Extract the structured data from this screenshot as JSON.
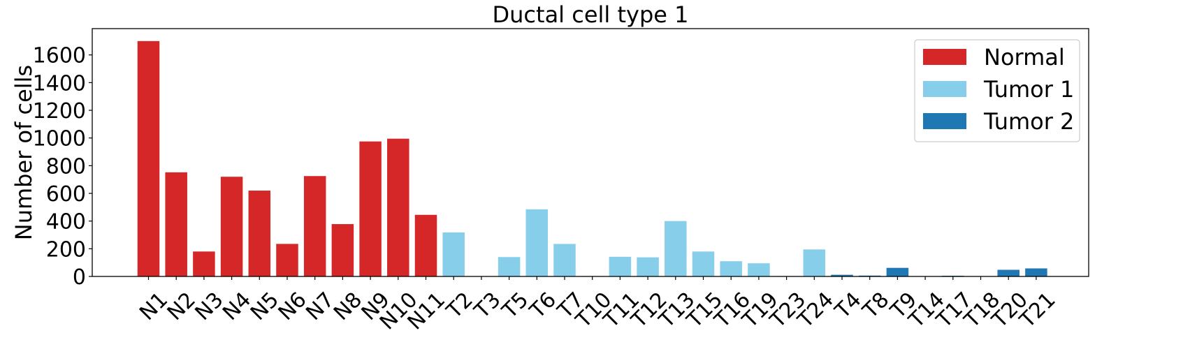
{
  "chart_data": {
    "type": "bar",
    "title": "Ductal cell type 1",
    "xlabel": "",
    "ylabel": "Number of cells",
    "ylim": [
      0,
      1790
    ],
    "yticks": [
      0,
      200,
      400,
      600,
      800,
      1000,
      1200,
      1400,
      1600
    ],
    "grid": false,
    "legend_position": "top-right",
    "categories": [
      "N1",
      "N2",
      "N3",
      "N4",
      "N5",
      "N6",
      "N7",
      "N8",
      "N9",
      "N10",
      "N11",
      "T2",
      "T3",
      "T5",
      "T6",
      "T7",
      "T10",
      "T11",
      "T12",
      "T13",
      "T15",
      "T16",
      "T19",
      "T23",
      "T24",
      "T4",
      "T8",
      "T9",
      "T14",
      "T17",
      "T18",
      "T20",
      "T21"
    ],
    "values": [
      1700,
      752,
      180,
      720,
      620,
      235,
      725,
      378,
      975,
      995,
      445,
      318,
      2,
      140,
      485,
      235,
      3,
      142,
      138,
      400,
      180,
      110,
      95,
      3,
      195,
      12,
      6,
      62,
      2,
      5,
      2,
      48,
      58
    ],
    "groups": [
      "Normal",
      "Normal",
      "Normal",
      "Normal",
      "Normal",
      "Normal",
      "Normal",
      "Normal",
      "Normal",
      "Normal",
      "Normal",
      "Tumor 1",
      "Tumor 1",
      "Tumor 1",
      "Tumor 1",
      "Tumor 1",
      "Tumor 1",
      "Tumor 1",
      "Tumor 1",
      "Tumor 1",
      "Tumor 1",
      "Tumor 1",
      "Tumor 1",
      "Tumor 1",
      "Tumor 1",
      "Tumor 2",
      "Tumor 2",
      "Tumor 2",
      "Tumor 2",
      "Tumor 2",
      "Tumor 2",
      "Tumor 2",
      "Tumor 2"
    ],
    "legend": [
      {
        "name": "Normal",
        "color": "#d62728"
      },
      {
        "name": "Tumor 1",
        "color": "#87ceeb"
      },
      {
        "name": "Tumor 2",
        "color": "#1f77b4"
      }
    ]
  }
}
